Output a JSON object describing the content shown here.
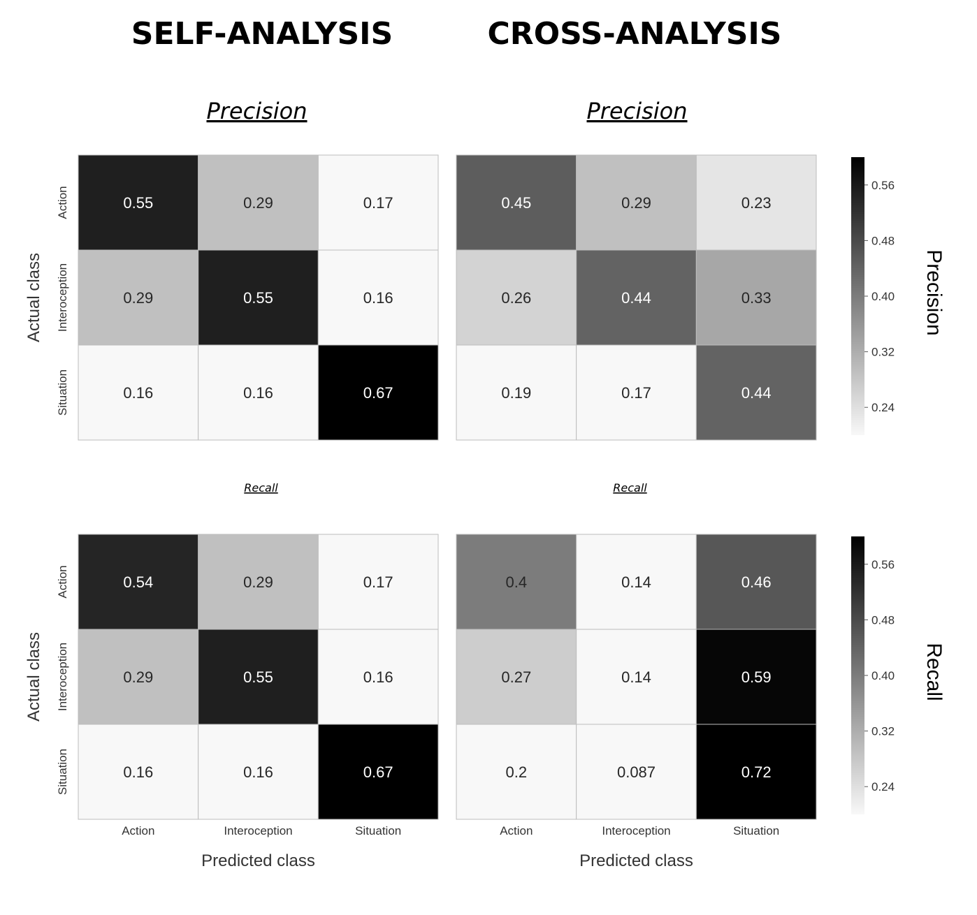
{
  "headers": {
    "self": "SELF-ANALYSIS",
    "cross": "CROSS-ANALYSIS"
  },
  "chart_data": [
    {
      "type": "heatmap",
      "title": "Precision",
      "column_group": "SELF-ANALYSIS",
      "xlabel": "",
      "ylabel": "Actual class",
      "x_categories": [
        "Action",
        "Interoception",
        "Situation"
      ],
      "y_categories": [
        "Action",
        "Interoception",
        "Situation"
      ],
      "values": [
        [
          0.55,
          0.29,
          0.17
        ],
        [
          0.29,
          0.55,
          0.16
        ],
        [
          0.16,
          0.16,
          0.67
        ]
      ],
      "show_x_ticks": false
    },
    {
      "type": "heatmap",
      "title": "Precision",
      "column_group": "CROSS-ANALYSIS",
      "xlabel": "",
      "ylabel": "",
      "x_categories": [
        "Action",
        "Interoception",
        "Situation"
      ],
      "y_categories": [
        "Action",
        "Interoception",
        "Situation"
      ],
      "values": [
        [
          0.45,
          0.29,
          0.23
        ],
        [
          0.26,
          0.44,
          0.33
        ],
        [
          0.19,
          0.17,
          0.44
        ]
      ],
      "show_x_ticks": false,
      "colorbar": {
        "label": "Precision",
        "range": [
          0.2,
          0.6
        ],
        "ticks": [
          "0.56",
          "0.48",
          "0.40",
          "0.32",
          "0.24"
        ]
      }
    },
    {
      "type": "heatmap",
      "title": "Recall",
      "column_group": "SELF-ANALYSIS",
      "xlabel": "Predicted class",
      "ylabel": "Actual class",
      "x_categories": [
        "Action",
        "Interoception",
        "Situation"
      ],
      "y_categories": [
        "Action",
        "Interoception",
        "Situation"
      ],
      "values": [
        [
          0.54,
          0.29,
          0.17
        ],
        [
          0.29,
          0.55,
          0.16
        ],
        [
          0.16,
          0.16,
          0.67
        ]
      ],
      "show_x_ticks": true
    },
    {
      "type": "heatmap",
      "title": "Recall",
      "column_group": "CROSS-ANALYSIS",
      "xlabel": "Predicted class",
      "ylabel": "",
      "x_categories": [
        "Action",
        "Interoception",
        "Situation"
      ],
      "y_categories": [
        "Action",
        "Interoception",
        "Situation"
      ],
      "values": [
        [
          0.4,
          0.14,
          0.46
        ],
        [
          0.27,
          0.14,
          0.59
        ],
        [
          0.2,
          0.087,
          0.72
        ]
      ],
      "show_x_ticks": true,
      "colorbar": {
        "label": "Recall",
        "range": [
          0.2,
          0.6
        ],
        "ticks": [
          "0.56",
          "0.48",
          "0.40",
          "0.32",
          "0.24"
        ]
      }
    }
  ]
}
